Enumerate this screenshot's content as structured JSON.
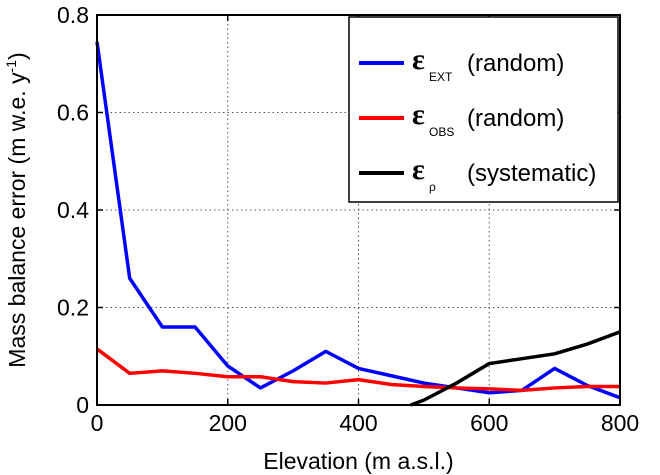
{
  "chart_data": {
    "type": "line",
    "xlabel": "Elevation (m a.s.l.)",
    "ylabel": "Mass balance error (m w.e. y",
    "ylabel_sup": "-1",
    "ylabel_close": ")",
    "xlim": [
      0,
      800
    ],
    "ylim": [
      0,
      0.8
    ],
    "xticks": [
      0,
      200,
      400,
      600,
      800
    ],
    "yticks": [
      0,
      0.2,
      0.4,
      0.6,
      0.8
    ],
    "xtick_labels": [
      "0",
      "200",
      "400",
      "600",
      "800"
    ],
    "ytick_labels": [
      "0",
      "0.2",
      "0.4",
      "0.6",
      "0.8"
    ],
    "grid": true,
    "legend_position": "top-right",
    "series": [
      {
        "symbol": "ε",
        "subscript": "EXT",
        "name": "(random)",
        "color": "#0000ff",
        "x": [
          0,
          50,
          100,
          150,
          200,
          250,
          300,
          350,
          400,
          450,
          500,
          550,
          600,
          650,
          700,
          750,
          800
        ],
        "y": [
          0.745,
          0.26,
          0.16,
          0.16,
          0.08,
          0.035,
          0.07,
          0.11,
          0.075,
          0.06,
          0.045,
          0.035,
          0.025,
          0.03,
          0.075,
          0.04,
          0.015
        ]
      },
      {
        "symbol": "ε",
        "subscript": "OBS",
        "name": "(random)",
        "color": "#ff0000",
        "x": [
          0,
          50,
          100,
          150,
          200,
          250,
          300,
          350,
          400,
          450,
          500,
          550,
          600,
          650,
          700,
          750,
          800
        ],
        "y": [
          0.115,
          0.065,
          0.07,
          0.065,
          0.058,
          0.058,
          0.048,
          0.045,
          0.052,
          0.042,
          0.038,
          0.035,
          0.033,
          0.03,
          0.035,
          0.038,
          0.038
        ]
      },
      {
        "symbol": "ε",
        "subscript": "ρ",
        "name": "(systematic)",
        "color": "#000000",
        "x": [
          480,
          500,
          550,
          600,
          650,
          700,
          750,
          800
        ],
        "y": [
          0,
          0.01,
          0.045,
          0.085,
          0.095,
          0.105,
          0.125,
          0.15
        ]
      }
    ]
  }
}
